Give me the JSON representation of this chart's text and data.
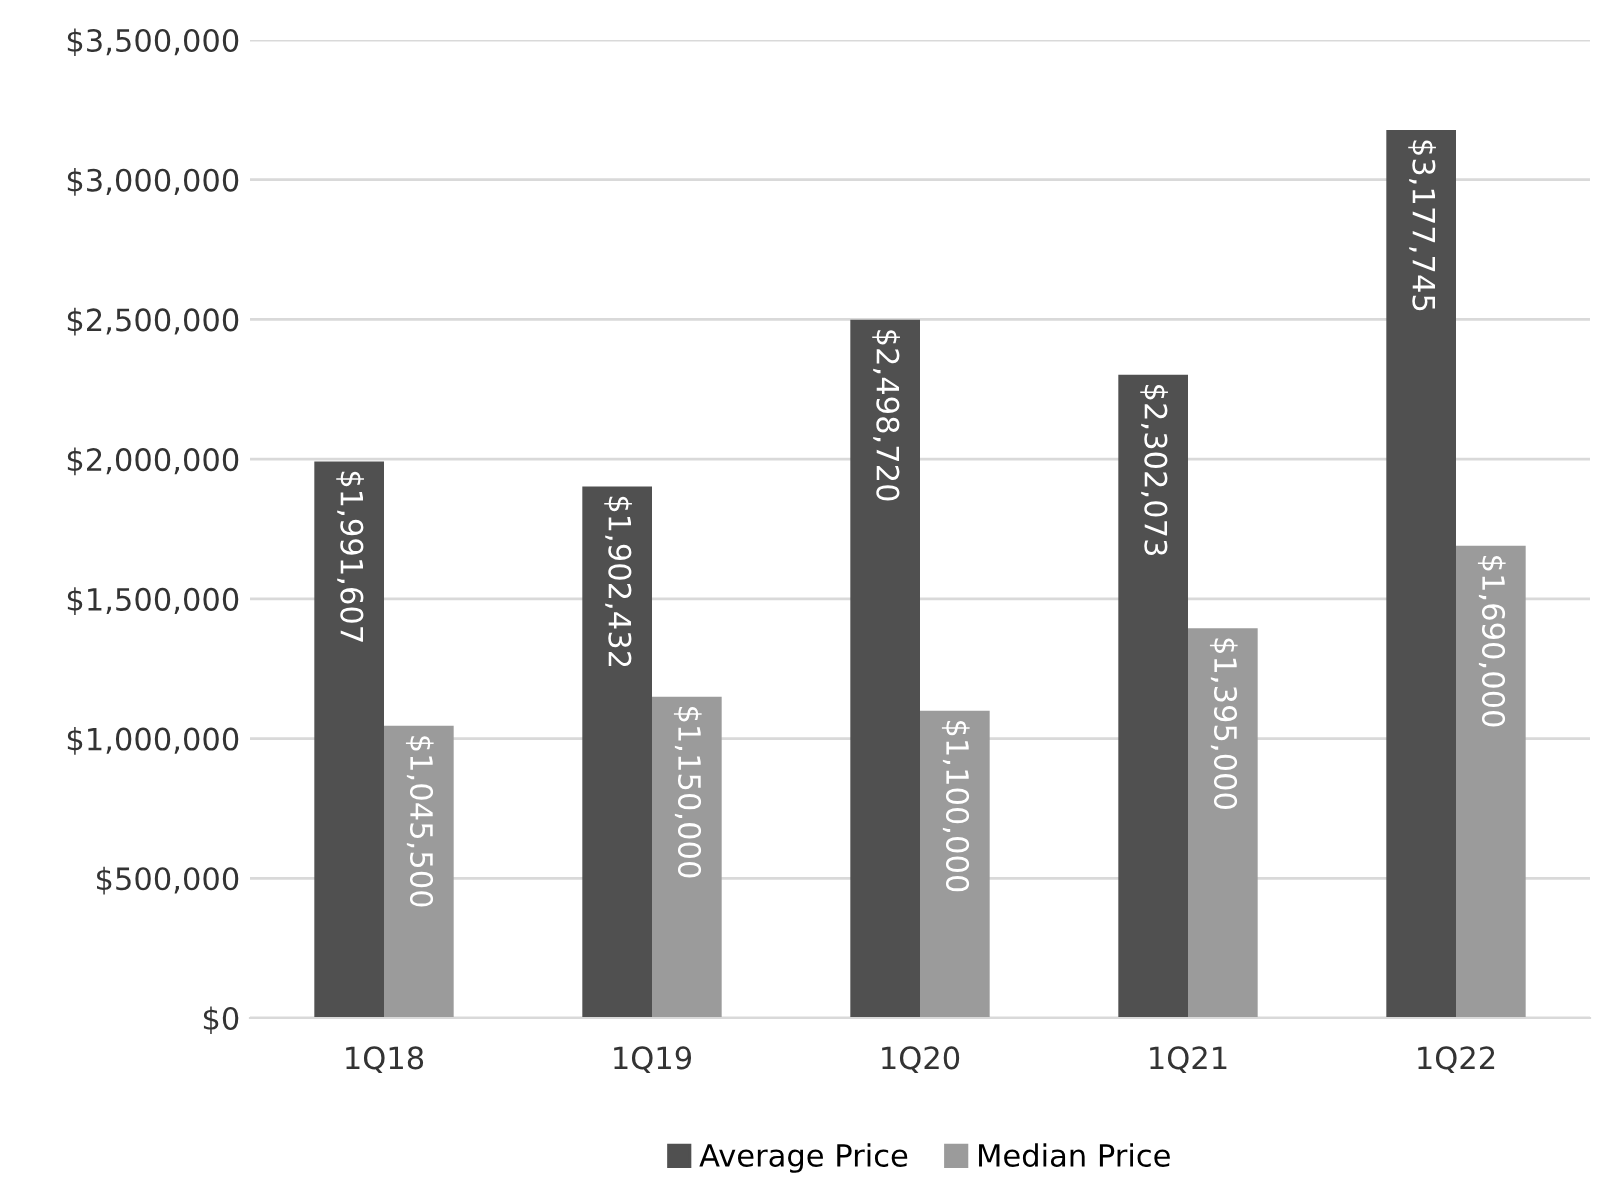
{
  "chart_data": {
    "type": "bar",
    "categories": [
      "1Q18",
      "1Q19",
      "1Q20",
      "1Q21",
      "1Q22"
    ],
    "series": [
      {
        "name": "Average Price",
        "color": "#505050",
        "values": [
          1991607,
          1902432,
          2498720,
          2302073,
          3177745
        ],
        "value_labels": [
          "$1,991,607",
          "$1,902,432",
          "$2,498,720",
          "$2,302,073",
          "$3,177,745"
        ]
      },
      {
        "name": "Median Price",
        "color": "#9b9b9b",
        "values": [
          1045500,
          1150000,
          1100000,
          1395000,
          1690000
        ],
        "value_labels": [
          "$1,045,500",
          "$1,150,000",
          "$1,100,000",
          "$1,395,000",
          "$1,690,000"
        ]
      }
    ],
    "ylim": [
      0,
      3500000
    ],
    "yticks": [
      {
        "value": 0,
        "label": "$0"
      },
      {
        "value": 500000,
        "label": "$500,000"
      },
      {
        "value": 1000000,
        "label": "$1,000,000"
      },
      {
        "value": 1500000,
        "label": "$1,500,000"
      },
      {
        "value": 2000000,
        "label": "$2,000,000"
      },
      {
        "value": 2500000,
        "label": "$2,500,000"
      },
      {
        "value": 3000000,
        "label": "$3,000,000"
      },
      {
        "value": 3500000,
        "label": "$3,500,000"
      }
    ],
    "grid": "y",
    "legend": "bottom"
  }
}
